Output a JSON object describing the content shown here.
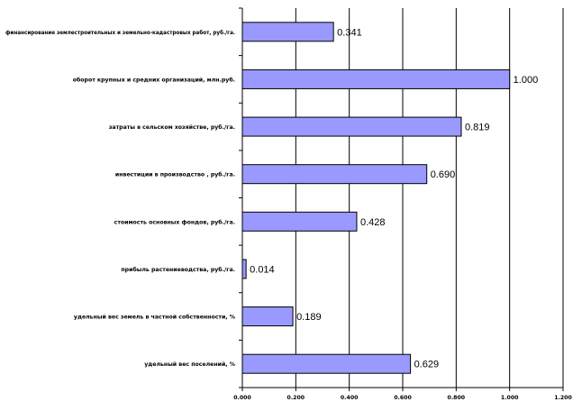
{
  "chart_data": {
    "type": "bar",
    "orientation": "horizontal",
    "title": "",
    "xlabel": "",
    "ylabel": "",
    "xlim": [
      0,
      1.2
    ],
    "x_ticks": [
      0.0,
      0.2,
      0.4,
      0.6,
      0.8,
      1.0,
      1.2
    ],
    "x_tick_labels": [
      "0.000",
      "0.200",
      "0.400",
      "0.600",
      "0.800",
      "1.000",
      "1.200"
    ],
    "grid": "vertical major gridlines",
    "legend": "none",
    "bar_color": "#9999ff",
    "bar_edge_color": "#000000",
    "categories": [
      "финансирование землестроительных и земельно-кадастровых работ, руб./га.",
      "оборот крупных и средних организаций, млн.руб.",
      "затраты в сельском хозяйстве, руб./га.",
      "инвестиции в производство , руб./га.",
      "стоимость основных фондов, руб./га.",
      "прибыль растениеводства, руб./га.",
      "удельный вес земель в частной собственности, %",
      "удельный вес поселений, %"
    ],
    "values": [
      0.341,
      1.0,
      0.819,
      0.69,
      0.428,
      0.014,
      0.189,
      0.629
    ],
    "value_labels": [
      "0.341",
      "1.000",
      "0.819",
      "0.690",
      "0.428",
      "0.014",
      "0.189",
      "0.629"
    ]
  }
}
